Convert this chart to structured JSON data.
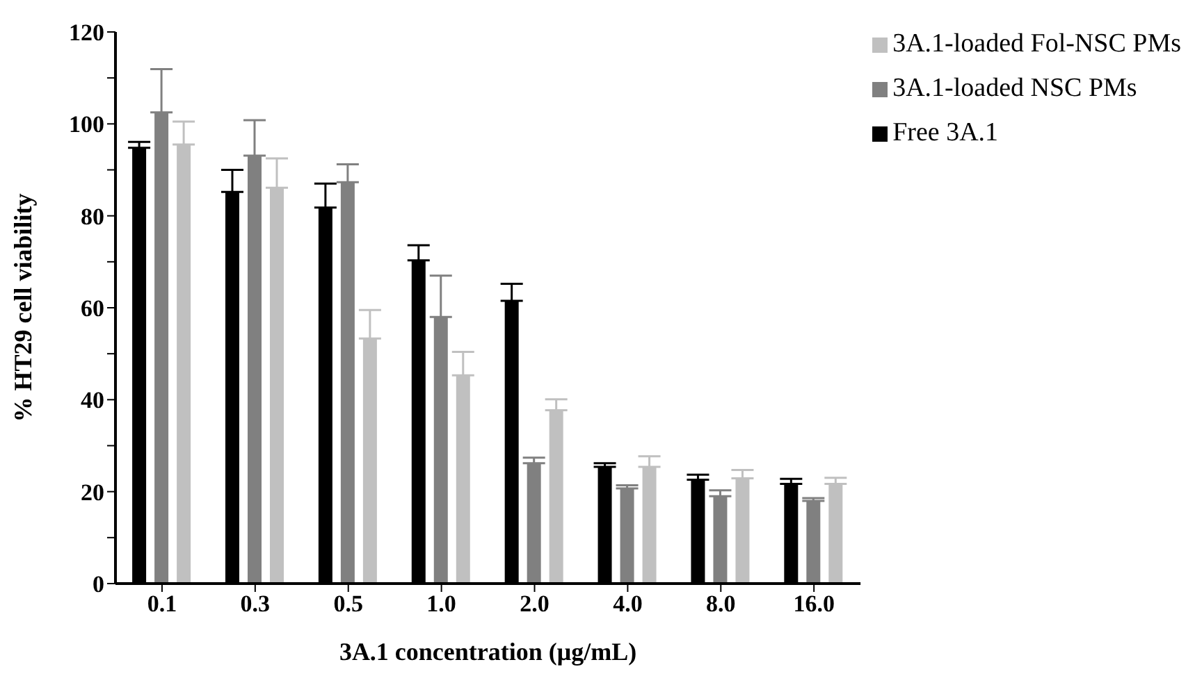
{
  "chart_data": {
    "type": "bar",
    "xlabel": "3A.1 concentration (μg/mL)",
    "ylabel": "% HT29 cell viability",
    "categories": [
      "0.1",
      "0.3",
      "0.5",
      "1.0",
      "2.0",
      "4.0",
      "8.0",
      "16.0"
    ],
    "series": [
      {
        "name": "Free 3A.1",
        "color": "#000000",
        "values": [
          94.8,
          85.2,
          81.8,
          70.3,
          61.5,
          25.4,
          22.6,
          21.7
        ],
        "errors": [
          [
            94.8,
            96.1
          ],
          [
            85.2,
            90
          ],
          [
            81.8,
            87
          ],
          [
            70.3,
            73.6
          ],
          [
            61.5,
            65.2
          ],
          [
            25.4,
            26.2
          ],
          [
            22.6,
            23.7
          ],
          [
            21.7,
            22.8
          ]
        ]
      },
      {
        "name": "3A.1-loaded NSC PMs",
        "color": "#808080",
        "values": [
          102.5,
          93.1,
          87.3,
          58,
          26.2,
          20.7,
          19,
          18
        ],
        "errors": [
          [
            102.5,
            111.9
          ],
          [
            93.1,
            100.8
          ],
          [
            87.3,
            91.2
          ],
          [
            58,
            67
          ],
          [
            26.2,
            27.4
          ],
          [
            20.7,
            21.4
          ],
          [
            19,
            20.3
          ],
          [
            18,
            18.6
          ]
        ]
      },
      {
        "name": "3A.1-loaded Fol-NSC PMs",
        "color": "#c0c0c0",
        "values": [
          95.5,
          86.1,
          53.3,
          45.3,
          37.7,
          25.4,
          22.9,
          21.7
        ],
        "errors": [
          [
            95.5,
            100.5
          ],
          [
            86.1,
            92.5
          ],
          [
            53.3,
            59.5
          ],
          [
            45.3,
            50.4
          ],
          [
            37.7,
            40.1
          ],
          [
            25.4,
            27.7
          ],
          [
            22.9,
            24.7
          ],
          [
            21.7,
            23
          ]
        ]
      }
    ],
    "ylim": [
      0,
      120
    ],
    "yticks": [
      0,
      {
        "value": 10,
        "label": null
      },
      20,
      {
        "value": 30,
        "label": null
      },
      40,
      {
        "value": 50,
        "label": null
      },
      60,
      {
        "value": 70,
        "label": null
      },
      80,
      {
        "value": 90,
        "label": null
      },
      100,
      {
        "value": 110,
        "label": null
      },
      120
    ],
    "grid": false,
    "legend": "top right"
  }
}
